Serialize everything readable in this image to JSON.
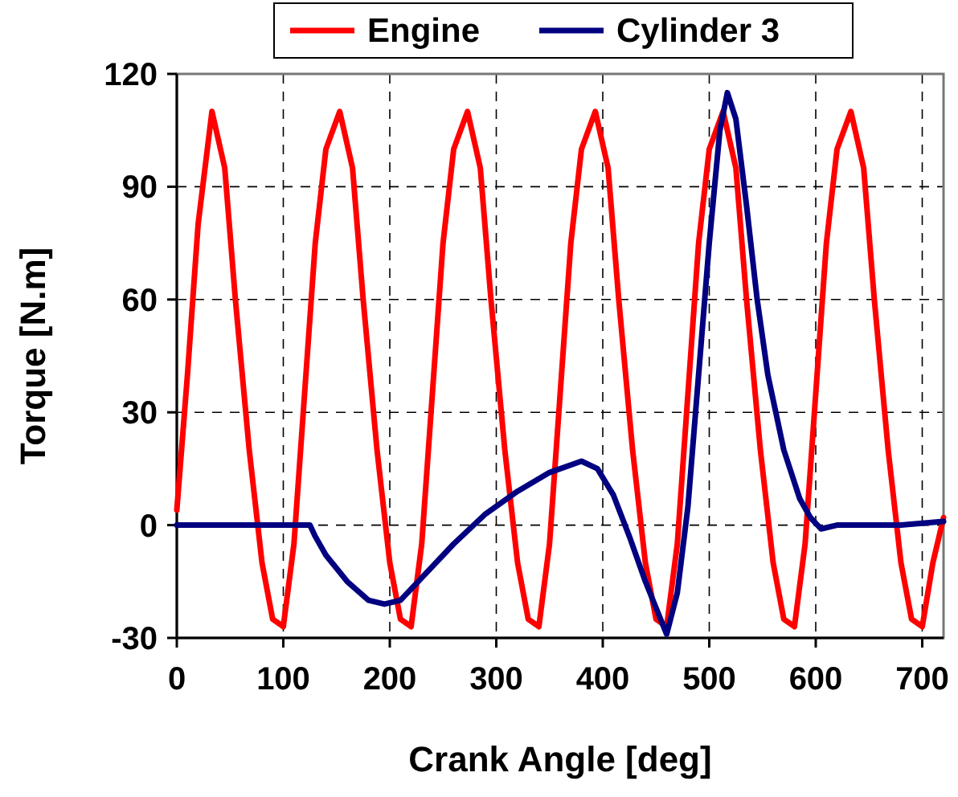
{
  "chart_data": {
    "type": "line",
    "xlabel": "Crank Angle [deg]",
    "ylabel": "Torque [N.m]",
    "xlim": [
      0,
      720
    ],
    "xticks": [
      0,
      100,
      200,
      300,
      400,
      500,
      600,
      700
    ],
    "ylim": [
      -30,
      120
    ],
    "yticks": [
      -30,
      0,
      30,
      60,
      90,
      120
    ],
    "grid": true,
    "legend": "top",
    "marker": "none",
    "line_style": "solid",
    "series": [
      {
        "name": "Engine",
        "color": "#ff0000",
        "x": [
          0,
          10,
          20,
          33,
          45,
          55,
          68,
          80,
          90,
          100,
          110,
          120,
          130,
          140,
          153,
          165,
          175,
          188,
          200,
          210,
          220,
          230,
          240,
          250,
          260,
          273,
          285,
          295,
          308,
          320,
          330,
          340,
          350,
          360,
          370,
          380,
          393,
          405,
          415,
          428,
          440,
          450,
          460,
          470,
          480,
          490,
          500,
          513,
          525,
          535,
          548,
          560,
          570,
          580,
          590,
          600,
          610,
          620,
          633,
          645,
          655,
          668,
          680,
          690,
          700,
          710,
          720
        ],
        "values": [
          4,
          40,
          80,
          110,
          95,
          60,
          20,
          -10,
          -25,
          -27,
          -5,
          35,
          75,
          100,
          110,
          95,
          60,
          20,
          -10,
          -25,
          -27,
          -5,
          35,
          75,
          100,
          110,
          95,
          60,
          20,
          -10,
          -25,
          -27,
          -5,
          35,
          75,
          100,
          110,
          95,
          60,
          20,
          -10,
          -25,
          -27,
          -5,
          35,
          75,
          100,
          110,
          95,
          60,
          20,
          -10,
          -25,
          -27,
          -5,
          35,
          75,
          100,
          110,
          95,
          60,
          20,
          -10,
          -25,
          -27,
          -10,
          2
        ]
      },
      {
        "name": "Cylinder 3",
        "color": "#000080",
        "x": [
          0,
          60,
          100,
          125,
          130,
          140,
          160,
          180,
          195,
          210,
          230,
          260,
          290,
          320,
          350,
          380,
          395,
          410,
          425,
          440,
          450,
          460,
          470,
          480,
          490,
          500,
          510,
          517,
          525,
          535,
          545,
          555,
          570,
          585,
          595,
          605,
          620,
          680,
          720
        ],
        "values": [
          0,
          0,
          0,
          0,
          -3,
          -8,
          -15,
          -20,
          -21,
          -20,
          -14,
          -5,
          3,
          9,
          14,
          17,
          15,
          8,
          -3,
          -15,
          -22,
          -29,
          -18,
          5,
          40,
          75,
          105,
          115,
          108,
          85,
          60,
          40,
          20,
          7,
          2,
          -1,
          0,
          0,
          1
        ]
      }
    ]
  }
}
